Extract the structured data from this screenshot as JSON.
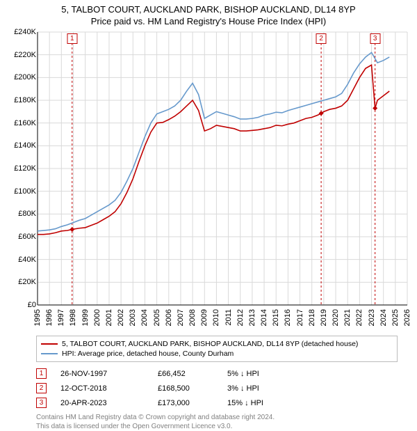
{
  "title_line1": "5, TALBOT COURT, AUCKLAND PARK, BISHOP AUCKLAND, DL14 8YP",
  "title_line2": "Price paid vs. HM Land Registry's House Price Index (HPI)",
  "chart": {
    "type": "line",
    "background_color": "#ffffff",
    "grid_color": "#d9d9d9",
    "axis_color": "#000000",
    "label_fontsize": 11,
    "xlim": [
      1995,
      2026
    ],
    "ylim": [
      0,
      240000
    ],
    "ytick_step": 20000,
    "yticks": [
      "£0",
      "£20K",
      "£40K",
      "£60K",
      "£80K",
      "£100K",
      "£120K",
      "£140K",
      "£160K",
      "£180K",
      "£200K",
      "£220K",
      "£240K"
    ],
    "xticks": [
      "1995",
      "1996",
      "1997",
      "1998",
      "1999",
      "2000",
      "2001",
      "2002",
      "2003",
      "2004",
      "2005",
      "2006",
      "2007",
      "2008",
      "2009",
      "2010",
      "2011",
      "2012",
      "2013",
      "2014",
      "2015",
      "2016",
      "2017",
      "2018",
      "2019",
      "2020",
      "2021",
      "2022",
      "2023",
      "2024",
      "2025",
      "2026"
    ],
    "series": [
      {
        "name": "price_paid",
        "color": "#c00000",
        "line_width": 1.6,
        "x": [
          1995.0,
          1995.5,
          1996.0,
          1996.5,
          1997.0,
          1997.5,
          1997.9,
          1998.5,
          1999.0,
          1999.5,
          2000.0,
          2000.5,
          2001.0,
          2001.5,
          2002.0,
          2002.5,
          2003.0,
          2003.5,
          2004.0,
          2004.5,
          2005.0,
          2005.5,
          2006.0,
          2006.5,
          2007.0,
          2007.5,
          2008.0,
          2008.5,
          2009.0,
          2009.5,
          2010.0,
          2010.5,
          2011.0,
          2011.5,
          2012.0,
          2012.5,
          2013.0,
          2013.5,
          2014.0,
          2014.5,
          2015.0,
          2015.5,
          2016.0,
          2016.5,
          2017.0,
          2017.5,
          2018.0,
          2018.5,
          2018.78,
          2019.0,
          2019.5,
          2020.0,
          2020.5,
          2021.0,
          2021.5,
          2022.0,
          2022.5,
          2023.0,
          2023.3,
          2023.5,
          2024.0,
          2024.5
        ],
        "y": [
          62000,
          62000,
          62500,
          63500,
          65000,
          65500,
          66452,
          67500,
          68000,
          70000,
          72000,
          75000,
          78000,
          82000,
          89000,
          99000,
          111000,
          126000,
          140000,
          152000,
          160000,
          160500,
          163000,
          166000,
          170000,
          175000,
          180000,
          171000,
          153000,
          155000,
          158000,
          157000,
          156000,
          155000,
          153000,
          153000,
          153500,
          154000,
          155000,
          156000,
          158000,
          157500,
          159000,
          160000,
          162000,
          164000,
          165000,
          167000,
          168500,
          170000,
          172000,
          173000,
          175000,
          180000,
          190000,
          200000,
          208000,
          211000,
          173000,
          180000,
          184000,
          188000
        ]
      },
      {
        "name": "hpi",
        "color": "#6699cc",
        "line_width": 1.6,
        "x": [
          1995.0,
          1995.5,
          1996.0,
          1996.5,
          1997.0,
          1997.5,
          1998.0,
          1998.5,
          1999.0,
          1999.5,
          2000.0,
          2000.5,
          2001.0,
          2001.5,
          2002.0,
          2002.5,
          2003.0,
          2003.5,
          2004.0,
          2004.5,
          2005.0,
          2005.5,
          2006.0,
          2006.5,
          2007.0,
          2007.5,
          2008.0,
          2008.5,
          2009.0,
          2009.5,
          2010.0,
          2010.5,
          2011.0,
          2011.5,
          2012.0,
          2012.5,
          2013.0,
          2013.5,
          2014.0,
          2014.5,
          2015.0,
          2015.5,
          2016.0,
          2016.5,
          2017.0,
          2017.5,
          2018.0,
          2018.5,
          2019.0,
          2019.5,
          2020.0,
          2020.5,
          2021.0,
          2021.5,
          2022.0,
          2022.5,
          2023.0,
          2023.5,
          2024.0,
          2024.5
        ],
        "y": [
          65000,
          65500,
          66000,
          67000,
          69000,
          70500,
          72500,
          74500,
          76000,
          79000,
          82000,
          85000,
          88000,
          92000,
          99000,
          109000,
          120000,
          134000,
          148000,
          160000,
          168000,
          170000,
          172000,
          175000,
          180000,
          188000,
          195000,
          185000,
          164000,
          167000,
          170000,
          168500,
          167000,
          165500,
          163500,
          163500,
          164000,
          165000,
          167000,
          168000,
          169500,
          169000,
          171000,
          172500,
          174000,
          175500,
          177000,
          178500,
          180000,
          181500,
          183000,
          186000,
          194000,
          204000,
          212000,
          218000,
          222000,
          213000,
          215000,
          218000
        ]
      }
    ],
    "sale_markers": [
      {
        "n": "1",
        "year": 1997.9,
        "price": 66452
      },
      {
        "n": "2",
        "year": 2018.78,
        "price": 168500
      },
      {
        "n": "3",
        "year": 2023.3,
        "price": 173000
      }
    ],
    "annotation_line_color": "#c00000",
    "annotation_line_dash": "3,3",
    "diamond_color": "#c00000",
    "diamond_size": 7
  },
  "legend": {
    "items": [
      {
        "color": "#c00000",
        "label": "5, TALBOT COURT, AUCKLAND PARK, BISHOP AUCKLAND, DL14 8YP (detached house)"
      },
      {
        "color": "#6699cc",
        "label": "HPI: Average price, detached house, County Durham"
      }
    ]
  },
  "markers_table": [
    {
      "n": "1",
      "date": "26-NOV-1997",
      "price": "£66,452",
      "delta": "5% ↓ HPI"
    },
    {
      "n": "2",
      "date": "12-OCT-2018",
      "price": "£168,500",
      "delta": "3% ↓ HPI"
    },
    {
      "n": "3",
      "date": "20-APR-2023",
      "price": "£173,000",
      "delta": "15% ↓ HPI"
    }
  ],
  "attribution": {
    "line1": "Contains HM Land Registry data © Crown copyright and database right 2024.",
    "line2": "This data is licensed under the Open Government Licence v3.0."
  }
}
